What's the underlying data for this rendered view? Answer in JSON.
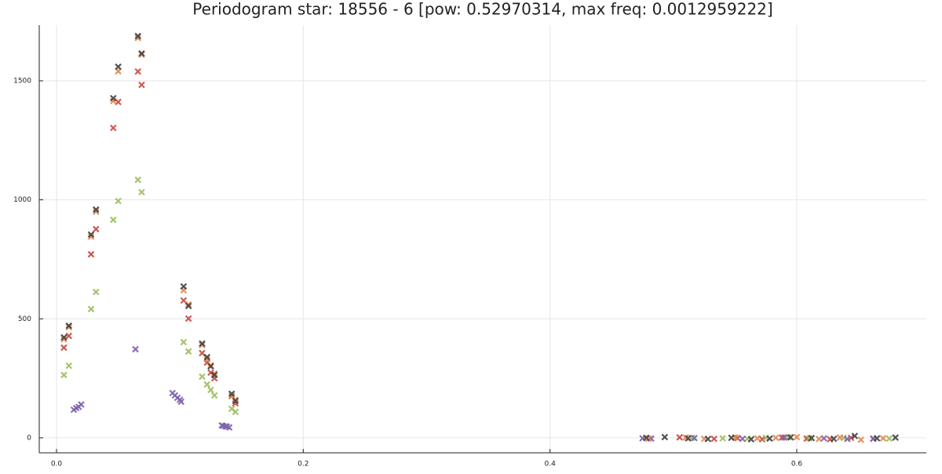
{
  "chart_data": {
    "type": "scatter",
    "title": "Periodogram star: 18556 - 6 [pow: 0.52970314, max freq: 0.0012959222]",
    "xlim": [
      -0.014,
      0.705
    ],
    "ylim": [
      -63,
      1734
    ],
    "xticks": [
      {
        "value": 0,
        "label": "0.0"
      },
      0.2,
      0.4,
      0.6
    ],
    "yticks": [
      0,
      500,
      1000,
      1500
    ],
    "grid": true,
    "series": [
      {
        "color": "#c9483f",
        "x": [
          0.006,
          0.01,
          0.028,
          0.032,
          0.046,
          0.05,
          0.066,
          0.069,
          0.103,
          0.107,
          0.118,
          0.122,
          0.125,
          0.128,
          0.142,
          0.145,
          0.505,
          0.533,
          0.552,
          0.572,
          0.588,
          0.608,
          0.627,
          0.644,
          0.662
        ],
        "values": [
          379,
          428,
          771,
          877,
          1302,
          1411,
          1539,
          1483,
          577,
          501,
          356,
          316,
          274,
          250,
          175,
          145,
          2,
          -4,
          -1,
          -6,
          1,
          -3,
          -6,
          0,
          -4
        ]
      },
      {
        "color": "#9cbd5e",
        "x": [
          0.006,
          0.01,
          0.028,
          0.032,
          0.046,
          0.05,
          0.066,
          0.069,
          0.103,
          0.107,
          0.118,
          0.122,
          0.125,
          0.128,
          0.142,
          0.145,
          0.515,
          0.54,
          0.56,
          0.575,
          0.593,
          0.61,
          0.638,
          0.675
        ],
        "values": [
          264,
          303,
          541,
          613,
          916,
          995,
          1084,
          1032,
          402,
          363,
          257,
          224,
          201,
          178,
          122,
          109,
          0,
          -2,
          -4,
          0,
          3,
          -2,
          0,
          -3
        ]
      },
      {
        "color": "#7e62ad",
        "x": [
          0.014,
          0.016,
          0.018,
          0.02,
          0.064,
          0.094,
          0.096,
          0.098,
          0.1,
          0.101,
          0.134,
          0.135,
          0.137,
          0.138,
          0.14,
          0.475,
          0.482,
          0.517,
          0.556,
          0.59,
          0.622,
          0.641,
          0.662
        ],
        "values": [
          118,
          125,
          130,
          140,
          372,
          188,
          178,
          168,
          160,
          152,
          52,
          50,
          48,
          47,
          44,
          -2,
          -3,
          -1,
          -4,
          1,
          -2,
          -5,
          -3
        ]
      },
      {
        "color": "#e0884f",
        "x": [
          0.006,
          0.01,
          0.028,
          0.032,
          0.046,
          0.05,
          0.066,
          0.069,
          0.103,
          0.107,
          0.118,
          0.122,
          0.125,
          0.128,
          0.142,
          0.145,
          0.48,
          0.51,
          0.525,
          0.55,
          0.568,
          0.583,
          0.6,
          0.618,
          0.635,
          0.652,
          0.67
        ],
        "values": [
          414,
          465,
          845,
          950,
          1415,
          1540,
          1680,
          1610,
          620,
          560,
          390,
          330,
          305,
          270,
          175,
          160,
          -3,
          1,
          -4,
          2,
          -2,
          0,
          3,
          -5,
          1,
          -8,
          -2
        ]
      },
      {
        "color": "#404040",
        "x": [
          0.006,
          0.01,
          0.028,
          0.032,
          0.046,
          0.05,
          0.066,
          0.069,
          0.103,
          0.107,
          0.118,
          0.122,
          0.125,
          0.128,
          0.142,
          0.145,
          0.478,
          0.493,
          0.512,
          0.528,
          0.547,
          0.563,
          0.578,
          0.595,
          0.612,
          0.63,
          0.647,
          0.665,
          0.68
        ],
        "values": [
          422,
          471,
          854,
          959,
          1427,
          1559,
          1688,
          1615,
          636,
          554,
          396,
          339,
          300,
          264,
          185,
          155,
          0,
          3,
          -2,
          -5,
          0,
          -6,
          -3,
          2,
          -1,
          -4,
          8,
          -2,
          1
        ]
      }
    ]
  }
}
